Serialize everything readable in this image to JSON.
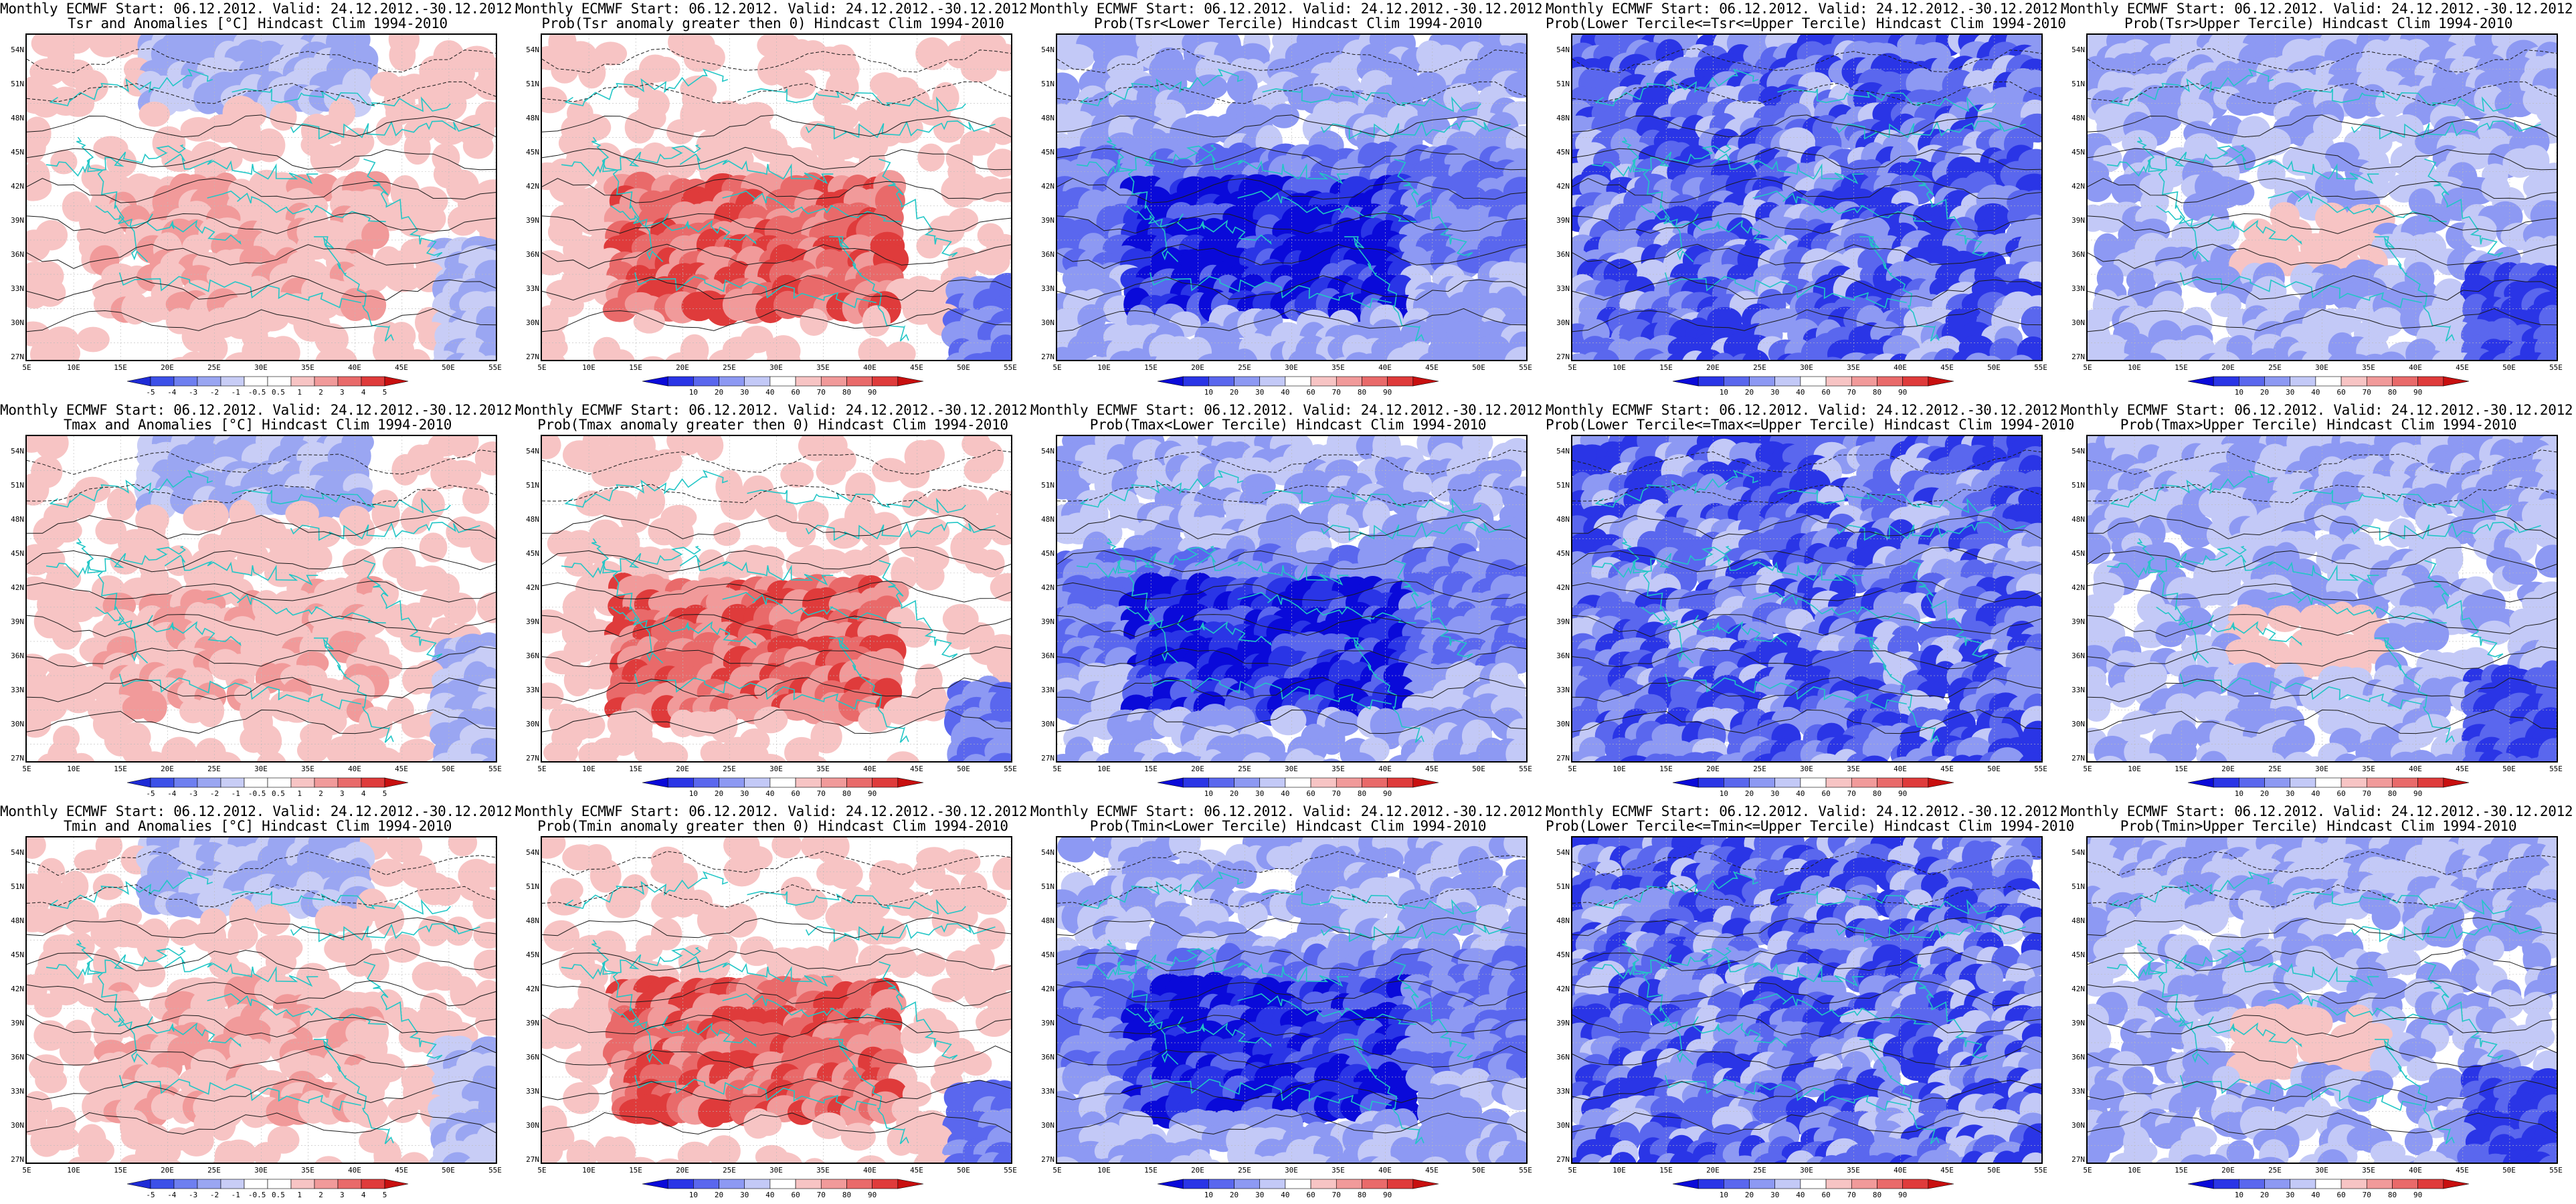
{
  "figure": {
    "y_ticks": [
      "54N",
      "51N",
      "48N",
      "45N",
      "42N",
      "39N",
      "36N",
      "33N",
      "30N",
      "27N"
    ],
    "x_ticks": [
      "5E",
      "10E",
      "15E",
      "20E",
      "25E",
      "30E",
      "35E",
      "40E",
      "45E",
      "50E",
      "55E"
    ],
    "colors": {
      "anomaly_scale": [
        "#1e2bd6",
        "#3c50e8",
        "#6e7ff0",
        "#9aa6f2",
        "#c8cdf6",
        "#ffffff",
        "#ffffff",
        "#f7c4c4",
        "#f19a9a",
        "#e96a6a",
        "#df3b3b",
        "#c80f0f"
      ],
      "prob_scale": [
        "#0a0ad9",
        "#2a35e6",
        "#5a67ee",
        "#8d99f3",
        "#c3c9f7",
        "#ffffff",
        "#f7c4c4",
        "#f19a9a",
        "#e96a6a",
        "#df3b3b",
        "#c80f0f"
      ],
      "coastline": "#22c6c6",
      "contour": "#1a1a1a"
    },
    "colorbars": {
      "anomaly": [
        "-5",
        "-4",
        "-3",
        "-2",
        "-1",
        "-0.5",
        "0.5",
        "1",
        "2",
        "3",
        "4",
        "5"
      ],
      "prob": [
        "10",
        "20",
        "30",
        "40",
        "60",
        "70",
        "80",
        "90"
      ]
    },
    "panels": [
      {
        "title1": "Monthly ECMWF Start: 06.12.2012. Valid: 24.12.2012.-30.12.2012.",
        "title2": "Tsr and Anomalies [°C] Hindcast Clim 1994-2010",
        "type": "anomaly",
        "pattern": "red-south"
      },
      {
        "title1": "Monthly ECMWF Start: 06.12.2012. Valid: 24.12.2012.-30.12.2012.",
        "title2": "Prob(Tsr anomaly greater then 0) Hindcast Clim 1994-2010",
        "type": "prob",
        "pattern": "red-strong"
      },
      {
        "title1": "Monthly ECMWF Start: 06.12.2012. Valid: 24.12.2012.-30.12.2012.",
        "title2": "Prob(Tsr<Lower Tercile) Hindcast Clim 1994-2010",
        "type": "prob",
        "pattern": "blue-strong"
      },
      {
        "title1": "Monthly ECMWF Start: 06.12.2012. Valid: 24.12.2012.-30.12.2012.",
        "title2": "Prob(Lower Tercile<=Tsr<=Upper Tercile) Hindcast Clim 1994-2010",
        "type": "prob",
        "pattern": "blue-mixed"
      },
      {
        "title1": "Monthly ECMWF Start: 06.12.2012. Valid: 24.12.2012.-30.12.2012.",
        "title2": "Prob(Tsr>Upper Tercile) Hindcast Clim 1994-2010",
        "type": "prob",
        "pattern": "light-pink"
      },
      {
        "title1": "Monthly ECMWF Start: 06.12.2012. Valid: 24.12.2012.-30.12.2012.",
        "title2": "Tmax and Anomalies [°C] Hindcast Clim 1994-2010",
        "type": "anomaly",
        "pattern": "red-south"
      },
      {
        "title1": "Monthly ECMWF Start: 06.12.2012. Valid: 24.12.2012.-30.12.2012.",
        "title2": "Prob(Tmax anomaly greater then 0) Hindcast Clim 1994-2010",
        "type": "prob",
        "pattern": "red-strong"
      },
      {
        "title1": "Monthly ECMWF Start: 06.12.2012. Valid: 24.12.2012.-30.12.2012.",
        "title2": "Prob(Tmax<Lower Tercile) Hindcast Clim 1994-2010",
        "type": "prob",
        "pattern": "blue-strong"
      },
      {
        "title1": "Monthly ECMWF Start: 06.12.2012. Valid: 24.12.2012.-30.12.2012.",
        "title2": "Prob(Lower Tercile<=Tmax<=Upper Tercile) Hindcast Clim 1994-2010",
        "type": "prob",
        "pattern": "blue-mixed"
      },
      {
        "title1": "Monthly ECMWF Start: 06.12.2012. Valid: 24.12.2012.-30.12.2012.",
        "title2": "Prob(Tmax>Upper Tercile) Hindcast Clim 1994-2010",
        "type": "prob",
        "pattern": "light-pink"
      },
      {
        "title1": "Monthly ECMWF Start: 06.12.2012. Valid: 24.12.2012.-30.12.2012.",
        "title2": "Tmin and Anomalies [°C] Hindcast Clim 1994-2010",
        "type": "anomaly",
        "pattern": "red-south"
      },
      {
        "title1": "Monthly ECMWF Start: 06.12.2012. Valid: 24.12.2012.-30.12.2012.",
        "title2": "Prob(Tmin anomaly greater then 0) Hindcast Clim 1994-2010",
        "type": "prob",
        "pattern": "red-strong"
      },
      {
        "title1": "Monthly ECMWF Start: 06.12.2012. Valid: 24.12.2012.-30.12.2012.",
        "title2": "Prob(Tmin<Lower Tercile) Hindcast Clim 1994-2010",
        "type": "prob",
        "pattern": "blue-strong"
      },
      {
        "title1": "Monthly ECMWF Start: 06.12.2012. Valid: 24.12.2012.-30.12.2012.",
        "title2": "Prob(Lower Tercile<=Tmin<=Upper Tercile) Hindcast Clim 1994-2010",
        "type": "prob",
        "pattern": "blue-mixed"
      },
      {
        "title1": "Monthly ECMWF Start: 06.12.2012. Valid: 24.12.2012.-30.12.2012.",
        "title2": "Prob(Tmin>Upper Tercile) Hindcast Clim 1994-2010",
        "type": "prob",
        "pattern": "light-pink"
      }
    ]
  }
}
